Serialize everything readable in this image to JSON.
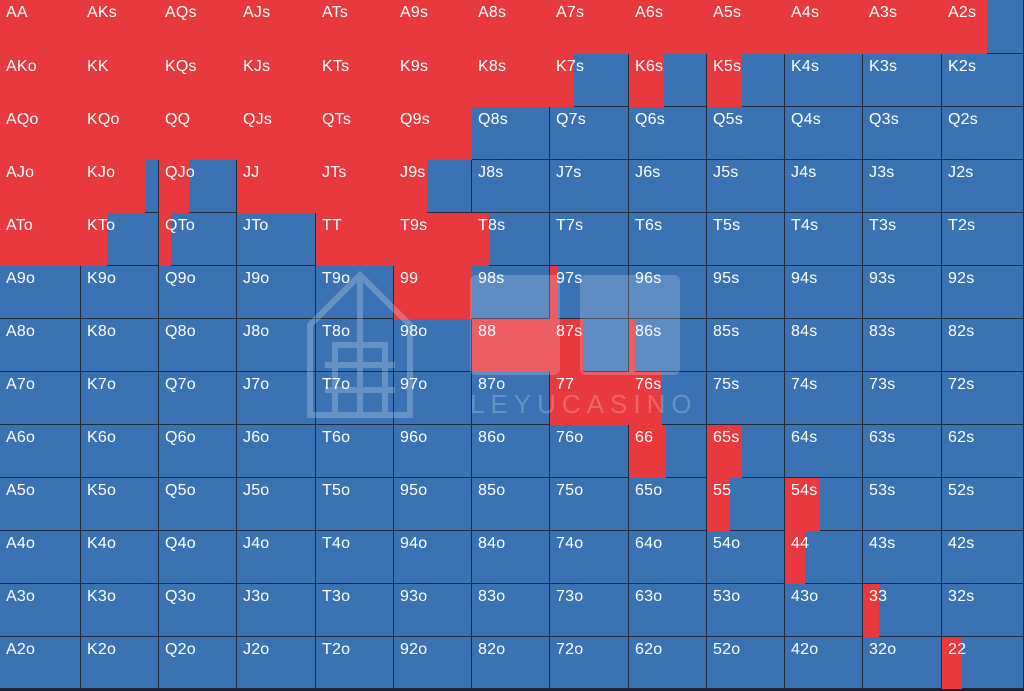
{
  "colors": {
    "raise": "#e8393f",
    "fold": "#3a72b4"
  },
  "hands": [
    [
      "AA",
      "AKs",
      "AQs",
      "AJs",
      "ATs",
      "A9s",
      "A8s",
      "A7s",
      "A6s",
      "A5s",
      "A4s",
      "A3s",
      "A2s"
    ],
    [
      "AKo",
      "KK",
      "KQs",
      "KJs",
      "KTs",
      "K9s",
      "K8s",
      "K7s",
      "K6s",
      "K5s",
      "K4s",
      "K3s",
      "K2s"
    ],
    [
      "AQo",
      "KQo",
      "QQ",
      "QJs",
      "QTs",
      "Q9s",
      "Q8s",
      "Q7s",
      "Q6s",
      "Q5s",
      "Q4s",
      "Q3s",
      "Q2s"
    ],
    [
      "AJo",
      "KJo",
      "QJo",
      "JJ",
      "JTs",
      "J9s",
      "J8s",
      "J7s",
      "J6s",
      "J5s",
      "J4s",
      "J3s",
      "J2s"
    ],
    [
      "ATo",
      "KTo",
      "QTo",
      "JTo",
      "TT",
      "T9s",
      "T8s",
      "T7s",
      "T6s",
      "T5s",
      "T4s",
      "T3s",
      "T2s"
    ],
    [
      "A9o",
      "K9o",
      "Q9o",
      "J9o",
      "T9o",
      "99",
      "98s",
      "97s",
      "96s",
      "95s",
      "94s",
      "93s",
      "92s"
    ],
    [
      "A8o",
      "K8o",
      "Q8o",
      "J8o",
      "T8o",
      "98o",
      "88",
      "87s",
      "86s",
      "85s",
      "84s",
      "83s",
      "82s"
    ],
    [
      "A7o",
      "K7o",
      "Q7o",
      "J7o",
      "T7o",
      "97o",
      "87o",
      "77",
      "76s",
      "75s",
      "74s",
      "73s",
      "72s"
    ],
    [
      "A6o",
      "K6o",
      "Q6o",
      "J6o",
      "T6o",
      "96o",
      "86o",
      "76o",
      "66",
      "65s",
      "64s",
      "63s",
      "62s"
    ],
    [
      "A5o",
      "K5o",
      "Q5o",
      "J5o",
      "T5o",
      "95o",
      "85o",
      "75o",
      "65o",
      "55",
      "54s",
      "53s",
      "52s"
    ],
    [
      "A4o",
      "K4o",
      "Q4o",
      "J4o",
      "T4o",
      "94o",
      "84o",
      "74o",
      "64o",
      "54o",
      "44",
      "43s",
      "42s"
    ],
    [
      "A3o",
      "K3o",
      "Q3o",
      "J3o",
      "T3o",
      "93o",
      "83o",
      "73o",
      "63o",
      "53o",
      "43o",
      "33",
      "32s"
    ],
    [
      "A2o",
      "K2o",
      "Q2o",
      "J2o",
      "T2o",
      "92o",
      "82o",
      "72o",
      "62o",
      "52o",
      "42o",
      "32o",
      "22"
    ]
  ],
  "raise_frequency": [
    [
      1,
      1,
      1,
      1,
      1,
      1,
      1,
      1,
      1,
      1,
      1,
      1,
      0.55
    ],
    [
      1,
      1,
      1,
      1,
      1,
      1,
      1,
      0.3,
      0.45,
      0.45,
      0,
      0,
      0
    ],
    [
      1,
      1,
      1,
      1,
      1,
      1,
      0,
      0,
      0,
      0,
      0,
      0,
      0
    ],
    [
      1,
      0.82,
      0.38,
      1,
      1,
      0.42,
      0,
      0,
      0,
      0,
      0,
      0,
      0
    ],
    [
      1,
      0.33,
      0.15,
      0,
      1,
      1,
      0.22,
      0,
      0,
      0,
      0,
      0,
      0
    ],
    [
      0,
      0,
      0,
      0,
      0,
      1,
      0,
      0.1,
      0,
      0,
      0,
      0,
      0
    ],
    [
      0,
      0,
      0,
      0,
      0,
      0,
      1,
      0.42,
      0.08,
      0,
      0,
      0,
      0
    ],
    [
      0,
      0,
      0,
      0,
      0,
      0,
      0,
      1,
      0.42,
      0,
      0,
      0,
      0
    ],
    [
      0,
      0,
      0,
      0,
      0,
      0,
      0,
      0,
      0.48,
      0.45,
      0,
      0,
      0
    ],
    [
      0,
      0,
      0,
      0,
      0,
      0,
      0,
      0,
      0,
      0.3,
      0.45,
      0,
      0
    ],
    [
      0,
      0,
      0,
      0,
      0,
      0,
      0,
      0,
      0,
      0,
      0.25,
      0,
      0
    ],
    [
      0,
      0,
      0,
      0,
      0,
      0,
      0,
      0,
      0,
      0,
      0,
      0.2,
      0
    ],
    [
      0,
      0,
      0,
      0,
      0,
      0,
      0,
      0,
      0,
      0,
      0,
      0,
      0.24
    ]
  ],
  "watermark": {
    "icon": "building-logo-icon",
    "text": "LEYUCASINO"
  }
}
